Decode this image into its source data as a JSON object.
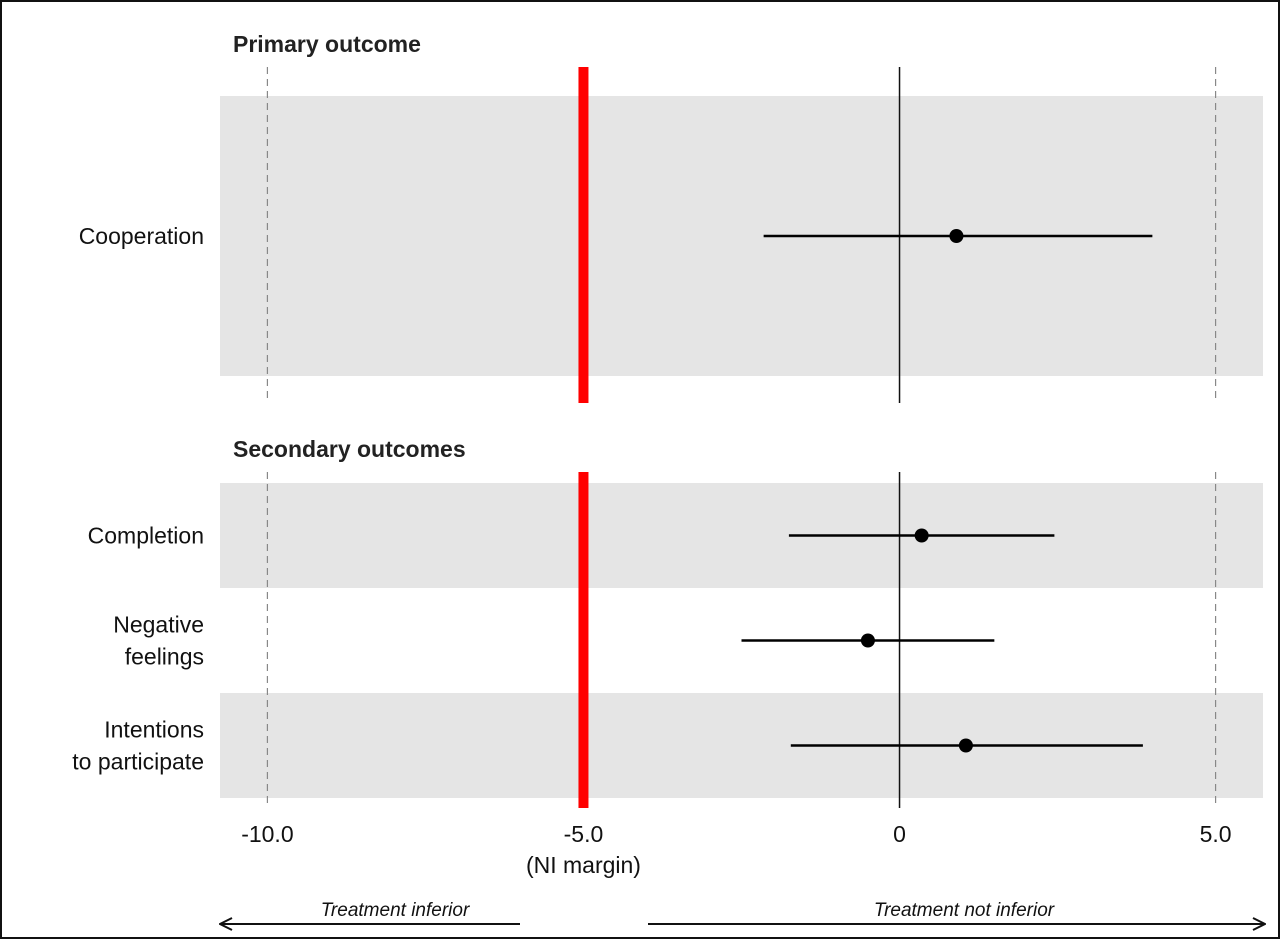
{
  "chart_data": {
    "type": "forest",
    "xlim": [
      -10.75,
      5.75
    ],
    "ni_margin": -5.0,
    "null_value": 0,
    "dashed_reference_lines": [
      -10.0,
      5.0
    ],
    "colors": {
      "ni_margin": "#ff0000",
      "band": "#e5e5e5",
      "point": "#000000"
    },
    "x_ticks": [
      {
        "value": -10.0,
        "label": "-10.0",
        "sublabel": ""
      },
      {
        "value": -5.0,
        "label": "-5.0",
        "sublabel": "(NI margin)"
      },
      {
        "value": 0,
        "label": "0",
        "sublabel": ""
      },
      {
        "value": 5.0,
        "label": "5.0",
        "sublabel": ""
      }
    ],
    "panels": [
      {
        "title": "Primary outcome",
        "rows": [
          {
            "label_lines": [
              "Cooperation"
            ],
            "estimate": 0.9,
            "lower": -2.15,
            "upper": 4.0,
            "shaded": true
          }
        ]
      },
      {
        "title": "Secondary outcomes",
        "rows": [
          {
            "label_lines": [
              "Completion"
            ],
            "estimate": 0.35,
            "lower": -1.75,
            "upper": 2.45,
            "shaded": true
          },
          {
            "label_lines": [
              "Negative",
              "feelings"
            ],
            "estimate": -0.5,
            "lower": -2.5,
            "upper": 1.5,
            "shaded": false
          },
          {
            "label_lines": [
              "Intentions",
              "to participate"
            ],
            "estimate": 1.05,
            "lower": -1.72,
            "upper": 3.85,
            "shaded": true
          }
        ]
      }
    ],
    "direction_labels": {
      "left": "Treatment inferior",
      "right": "Treatment not inferior"
    }
  }
}
